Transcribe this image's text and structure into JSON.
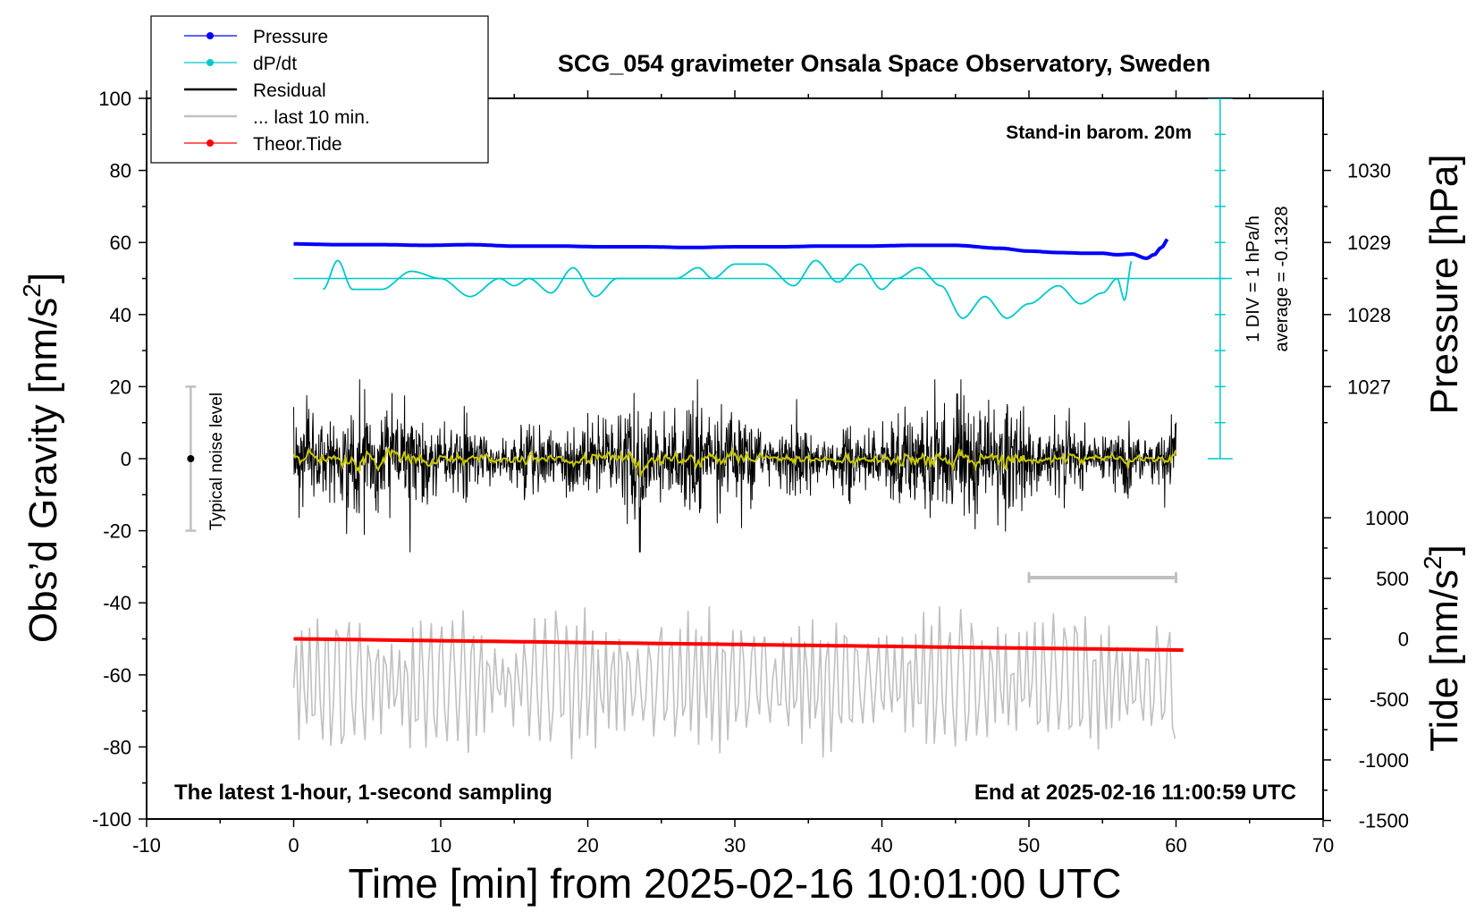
{
  "chart_data": {
    "type": "line",
    "title": "SCG_054 gravimeter Onsala Space Observatory, Sweden",
    "xlabel": "Time [min] from 2025-02-16 10:01:00 UTC",
    "ylabel_left_main": "Obs’d Gravity [nm/s",
    "ylabel_left_sup": "2",
    "ylabel_left_end": "]",
    "ylabel_right_pressure": "Pressure [hPa]",
    "ylabel_right_tide_main": "Tide [nm/s",
    "ylabel_right_tide_sup": "2",
    "ylabel_right_tide_end": "]",
    "xlim": [
      -10,
      70
    ],
    "ylim": [
      -100,
      100
    ],
    "x_ticks": [
      "-10",
      "0",
      "10",
      "20",
      "30",
      "40",
      "50",
      "60",
      "70"
    ],
    "y_ticks": [
      "100",
      "80",
      "60",
      "40",
      "20",
      "0",
      "-20",
      "-40",
      "-60",
      "-80",
      "-100"
    ],
    "pressure_ticks": [
      "1030",
      "1029",
      "1028",
      "1027"
    ],
    "pressure_tick_values": [
      1030,
      1029,
      1028,
      1027
    ],
    "tide_ticks": [
      "1000",
      "500",
      "0",
      "-500",
      "-1000",
      "-1500"
    ],
    "tide_tick_values": [
      1000,
      500,
      0,
      -500,
      -1000,
      -1500
    ],
    "legend": [
      "Pressure",
      "dP/dt",
      "Residual",
      "... last 10 min.",
      "Theor.Tide"
    ],
    "annotations": {
      "stand_in": "Stand-in barom. 20m",
      "div": "1 DIV = 1 hPa/h",
      "average": "average = -0.1328",
      "noise": "Typical noise level",
      "bottom_left": "The latest 1-hour, 1-second sampling",
      "bottom_right": "End at 2025-02-16 11:00:59 UTC"
    },
    "colors": {
      "pressure": "#0000ff",
      "dpdt": "#00c8c8",
      "residual": "#000000",
      "last10": "#c0c0c0",
      "tide": "#ff0000",
      "smooth": "#c8c800",
      "noise_bar": "#c0c0c0"
    },
    "noise_level": {
      "x": -7,
      "center": 0,
      "half_range": 20
    },
    "ten_min_bar": {
      "x": [
        50,
        60
      ],
      "y": -33
    },
    "dpdt_scale": {
      "zero_level": 50,
      "x": 63
    },
    "series": [
      {
        "name": "Pressure",
        "x": [
          0,
          3,
          6,
          9,
          12,
          15,
          18,
          21,
          24,
          27,
          30,
          33,
          36,
          39,
          42,
          45,
          48,
          50,
          52,
          54,
          55,
          56,
          57,
          58,
          58.5,
          59,
          59.5
        ],
        "values": [
          1028.98,
          1028.97,
          1028.97,
          1028.96,
          1028.97,
          1028.95,
          1028.95,
          1028.94,
          1028.94,
          1028.93,
          1028.94,
          1028.94,
          1028.95,
          1028.95,
          1028.96,
          1028.96,
          1028.92,
          1028.88,
          1028.86,
          1028.85,
          1028.85,
          1028.83,
          1028.84,
          1028.78,
          1028.83,
          1028.93,
          1029.06
        ]
      },
      {
        "name": "dP/dt",
        "x": [
          2,
          3,
          4,
          6,
          8,
          10,
          12,
          14,
          15,
          16,
          17.5,
          19,
          20.5,
          22,
          24,
          26,
          27.5,
          28.5,
          30,
          32,
          34,
          35.5,
          37,
          38.5,
          40,
          41,
          42.5,
          44,
          45.5,
          47,
          48.5,
          50,
          52,
          53.5,
          55,
          56,
          56.5,
          57
        ],
        "values": [
          47,
          55,
          47,
          47,
          52,
          50,
          45,
          50,
          48,
          50,
          46,
          53,
          45,
          50,
          50,
          50,
          53,
          50,
          54,
          54,
          48,
          55,
          49,
          54,
          47,
          50,
          53,
          48,
          39,
          45,
          39,
          43,
          48,
          43,
          46,
          50,
          44,
          55
        ]
      },
      {
        "name": "Residual",
        "x": [
          0,
          60
        ],
        "approx_range": [
          -26,
          22
        ]
      },
      {
        "name": "... last 10 min.",
        "x": [
          0,
          60
        ],
        "approx_range": [
          -84,
          -39
        ]
      },
      {
        "name": "Theor.Tide",
        "x": [
          0,
          60.5
        ],
        "values": [
          0,
          -93
        ]
      }
    ]
  }
}
